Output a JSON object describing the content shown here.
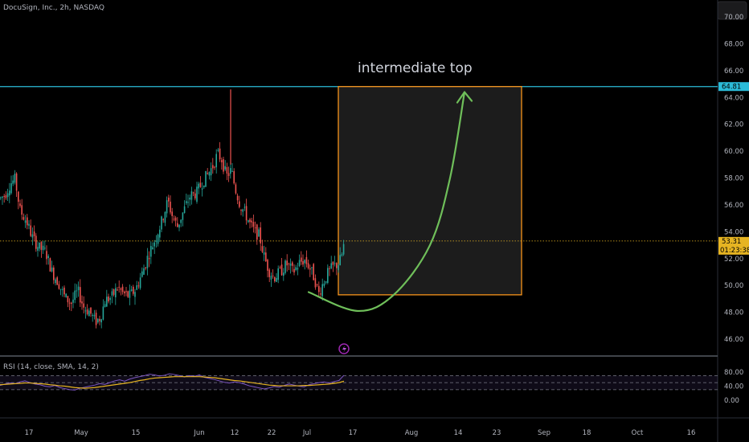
{
  "header": {
    "symbol_line": "DocuSign, Inc., 2h, NASDAQ"
  },
  "colors": {
    "background": "#000000",
    "up_candle": "#26a69a",
    "down_candle": "#ef5350",
    "resistance_line": "#2bbbd8",
    "box_border": "#f7931a",
    "box_fill": "#1e1e1e",
    "arrow": "#6fbf5a",
    "price_line": "#e6b422",
    "rsi_line": "#7e57c2",
    "rsi_ma": "#e6b422"
  },
  "chart_data": [
    {
      "type": "candlestick",
      "title": "DocuSign, Inc., 2h, NASDAQ",
      "ylim": [
        44.9,
        71.6
      ],
      "y_ticks": [
        "46.00",
        "48.00",
        "50.00",
        "52.00",
        "54.00",
        "56.00",
        "58.00",
        "60.00",
        "62.00",
        "64.00",
        "66.00",
        "68.00",
        "70.00"
      ],
      "x_ticks": [
        "17",
        "May",
        "15",
        "Jun",
        "12",
        "22",
        "Jul",
        "17",
        "Aug",
        "14",
        "23",
        "Sep",
        "18",
        "Oct",
        "16"
      ],
      "price_path": [
        {
          "x": 0,
          "y": 56.5
        },
        {
          "x": 6,
          "y": 56.8
        },
        {
          "x": 12,
          "y": 57.6
        },
        {
          "x": 18,
          "y": 57.9
        },
        {
          "x": 24,
          "y": 55.6
        },
        {
          "x": 32,
          "y": 54.8
        },
        {
          "x": 40,
          "y": 53.5
        },
        {
          "x": 48,
          "y": 52.8
        },
        {
          "x": 56,
          "y": 52.5
        },
        {
          "x": 64,
          "y": 51.0
        },
        {
          "x": 72,
          "y": 50.2
        },
        {
          "x": 80,
          "y": 49.1
        },
        {
          "x": 88,
          "y": 48.7
        },
        {
          "x": 96,
          "y": 49.6
        },
        {
          "x": 104,
          "y": 48.3
        },
        {
          "x": 110,
          "y": 48.1
        },
        {
          "x": 118,
          "y": 47.3
        },
        {
          "x": 124,
          "y": 47.6
        },
        {
          "x": 130,
          "y": 48.9
        },
        {
          "x": 138,
          "y": 49.1
        },
        {
          "x": 146,
          "y": 49.9
        },
        {
          "x": 152,
          "y": 49.4
        },
        {
          "x": 160,
          "y": 49.2
        },
        {
          "x": 168,
          "y": 49.7
        },
        {
          "x": 176,
          "y": 50.9
        },
        {
          "x": 184,
          "y": 52.3
        },
        {
          "x": 192,
          "y": 53.4
        },
        {
          "x": 200,
          "y": 54.7
        },
        {
          "x": 208,
          "y": 56.3
        },
        {
          "x": 214,
          "y": 55.1
        },
        {
          "x": 220,
          "y": 54.4
        },
        {
          "x": 228,
          "y": 55.6
        },
        {
          "x": 236,
          "y": 56.7
        },
        {
          "x": 244,
          "y": 56.9
        },
        {
          "x": 252,
          "y": 57.8
        },
        {
          "x": 258,
          "y": 58.3
        },
        {
          "x": 264,
          "y": 58.9
        },
        {
          "x": 270,
          "y": 59.8
        },
        {
          "x": 275,
          "y": 59.4
        },
        {
          "x": 281,
          "y": 58.1
        },
        {
          "x": 287,
          "y": 58.6
        },
        {
          "x": 292,
          "y": 57.2
        },
        {
          "x": 298,
          "y": 56.0
        },
        {
          "x": 304,
          "y": 55.4
        },
        {
          "x": 310,
          "y": 54.6
        },
        {
          "x": 316,
          "y": 54.0
        },
        {
          "x": 322,
          "y": 53.7
        },
        {
          "x": 328,
          "y": 52.1
        },
        {
          "x": 334,
          "y": 51.1
        },
        {
          "x": 340,
          "y": 50.6
        },
        {
          "x": 348,
          "y": 51.0
        },
        {
          "x": 356,
          "y": 51.6
        },
        {
          "x": 364,
          "y": 51.0
        },
        {
          "x": 372,
          "y": 51.7
        },
        {
          "x": 378,
          "y": 51.9
        },
        {
          "x": 384,
          "y": 51.4
        },
        {
          "x": 390,
          "y": 50.6
        },
        {
          "x": 396,
          "y": 49.4
        },
        {
          "x": 402,
          "y": 50.3
        },
        {
          "x": 408,
          "y": 51.0
        },
        {
          "x": 414,
          "y": 51.4
        },
        {
          "x": 420,
          "y": 51.6
        },
        {
          "x": 424,
          "y": 52.1
        },
        {
          "x": 428,
          "y": 53.3
        }
      ],
      "spike": {
        "x": 287,
        "high": 64.6,
        "low": 59.0
      },
      "current_price": 53.31,
      "current_price_label": "53.31",
      "countdown_label": "01:23:38",
      "resistance": 64.81,
      "resistance_label": "64.81",
      "target_box": {
        "x0": 421,
        "x1": 649,
        "y_top": 64.81,
        "y_bottom": 49.3
      },
      "annotation": "intermediate top",
      "arrow_path": [
        {
          "x": 384,
          "y": 49.5
        },
        {
          "x": 445,
          "y": 48.1
        },
        {
          "x": 490,
          "y": 49.3
        },
        {
          "x": 535,
          "y": 53.0
        },
        {
          "x": 560,
          "y": 58.0
        },
        {
          "x": 578,
          "y": 64.4
        }
      ]
    },
    {
      "type": "line",
      "title": "RSI (14, close, SMA, 14, 2)",
      "ylim": [
        0,
        100
      ],
      "y_ticks": [
        "0.00",
        "40.00",
        "80.00"
      ],
      "bands": [
        30,
        50,
        70
      ],
      "rsi_values": [
        42,
        46,
        49,
        47,
        52,
        55,
        50,
        46,
        44,
        40,
        38,
        42,
        36,
        33,
        30,
        29,
        34,
        37,
        40,
        43,
        47,
        45,
        50,
        55,
        58,
        54,
        60,
        64,
        67,
        70,
        74,
        72,
        69,
        71,
        75,
        73,
        70,
        66,
        70,
        68,
        72,
        65,
        62,
        59,
        55,
        51,
        49,
        52,
        50,
        46,
        41,
        38,
        35,
        32,
        35,
        39,
        37,
        42,
        46,
        43,
        40,
        38,
        44,
        47,
        50,
        52,
        49,
        53,
        56,
        71
      ],
      "ma_values": [
        44,
        45,
        46,
        47,
        48,
        49,
        49,
        48,
        47,
        46,
        44,
        43,
        41,
        40,
        38,
        36,
        35,
        34,
        35,
        36,
        38,
        40,
        42,
        44,
        46,
        48,
        50,
        53,
        56,
        58,
        61,
        63,
        64,
        65,
        66,
        67,
        67,
        67,
        67,
        67,
        67,
        66,
        65,
        64,
        62,
        60,
        58,
        56,
        55,
        53,
        51,
        49,
        47,
        45,
        43,
        42,
        41,
        41,
        41,
        41,
        41,
        42,
        42,
        43,
        44,
        45,
        46,
        48,
        50,
        54
      ]
    }
  ]
}
